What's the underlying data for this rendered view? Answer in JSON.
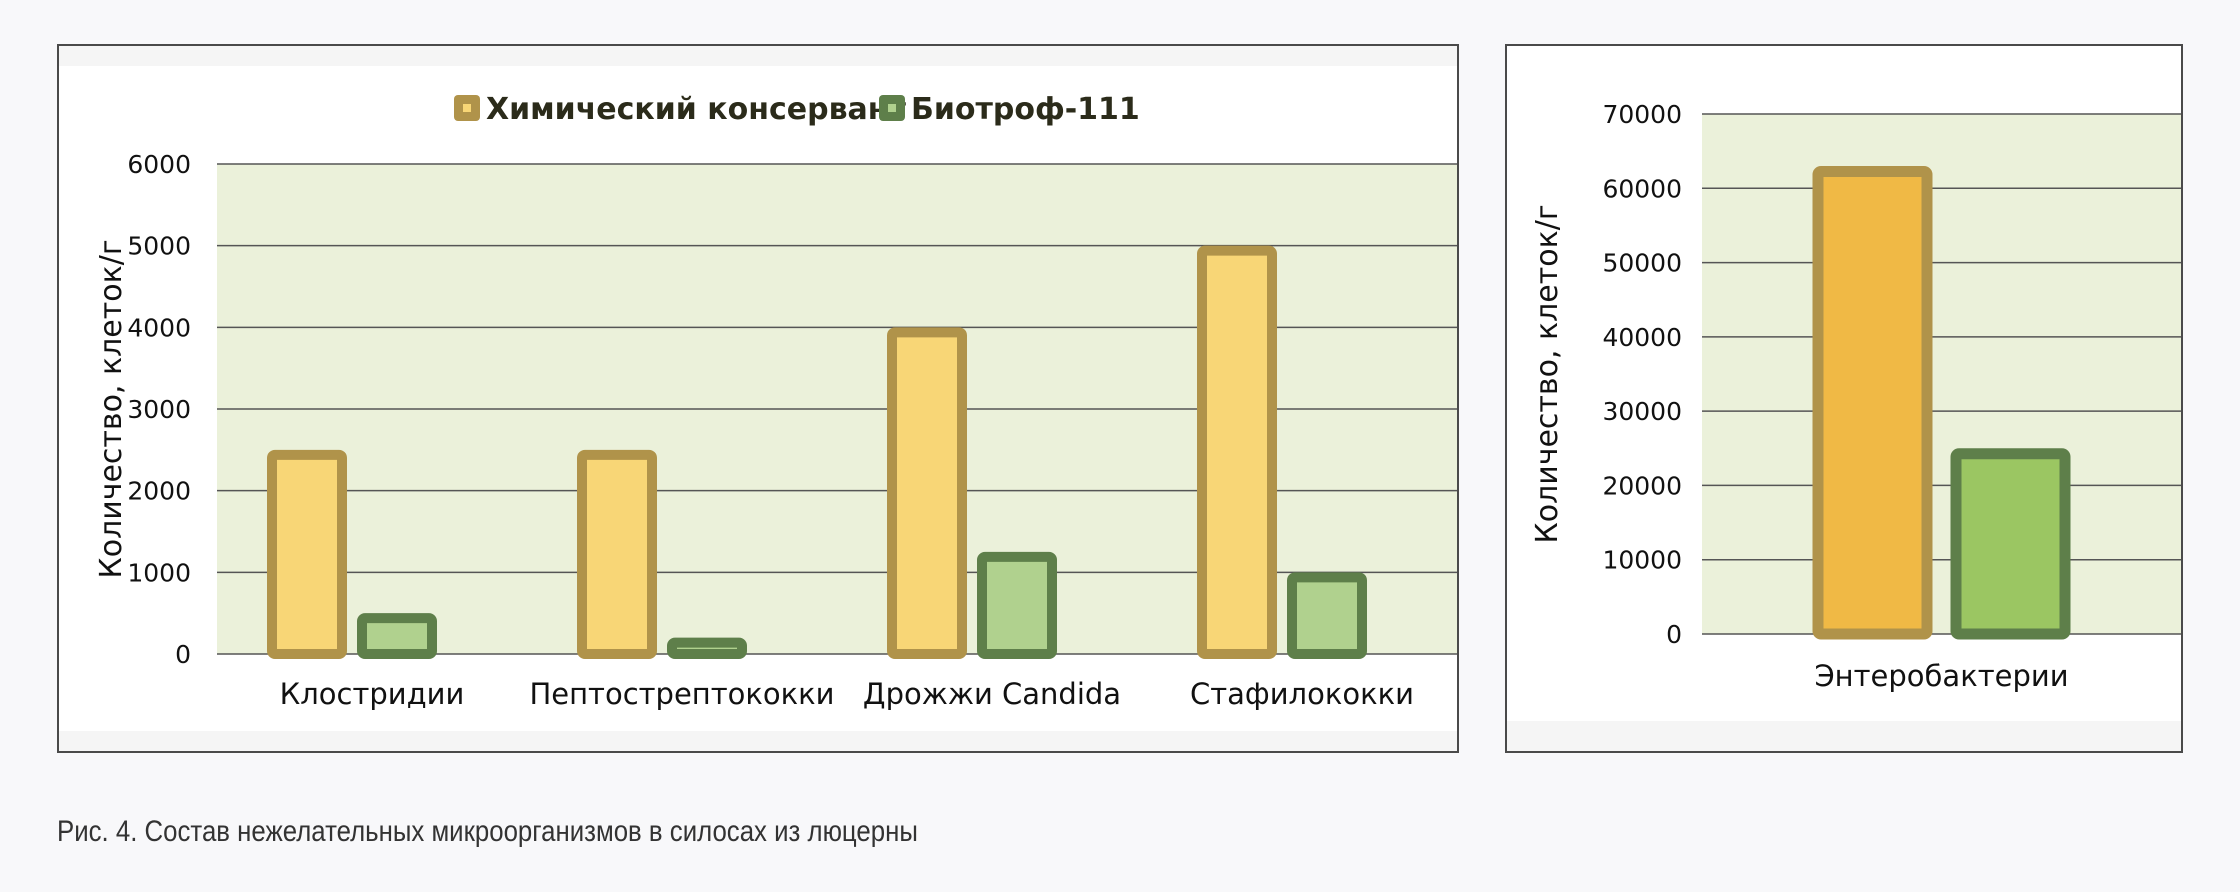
{
  "caption": "Рис. 4. Состав нежелательных микроорганизмов в силосах из люцерны",
  "colors": {
    "chem_fill": "#f8d676",
    "chem_stroke": "#b0934a",
    "bio_fill": "#b0d18e",
    "bio_stroke": "#5e7f4a",
    "entero_chem_fill": "#f0b945",
    "entero_bio_fill": "#9bc662",
    "plot_bg": "#ebf1da",
    "grid": "#555555"
  },
  "chart_data": [
    {
      "type": "bar",
      "title": "",
      "xlabel": "",
      "ylabel": "Количество, клеток/г",
      "ylim": [
        0,
        6000
      ],
      "yticks": [
        "0",
        "1000",
        "2000",
        "3000",
        "4000",
        "5000",
        "6000"
      ],
      "grid": true,
      "legend": "top-center",
      "categories": [
        "Клостридии",
        "Пептострептококки",
        "Дрожжи Candida",
        "Стафилококки"
      ],
      "series": [
        {
          "name": "Химический консервант",
          "values": [
            2500,
            2500,
            4000,
            5000
          ]
        },
        {
          "name": "Биотроф-111",
          "values": [
            500,
            200,
            1250,
            1000
          ]
        }
      ]
    },
    {
      "type": "bar",
      "title": "",
      "xlabel": "",
      "ylabel": "Количество, клеток/г",
      "ylim": [
        0,
        70000
      ],
      "yticks": [
        "0",
        "10000",
        "20000",
        "30000",
        "40000",
        "50000",
        "60000",
        "70000"
      ],
      "grid": true,
      "categories": [
        "Энтеробактерии"
      ],
      "series": [
        {
          "values": [
            63000
          ]
        },
        {
          "values": [
            25000
          ]
        }
      ]
    }
  ]
}
